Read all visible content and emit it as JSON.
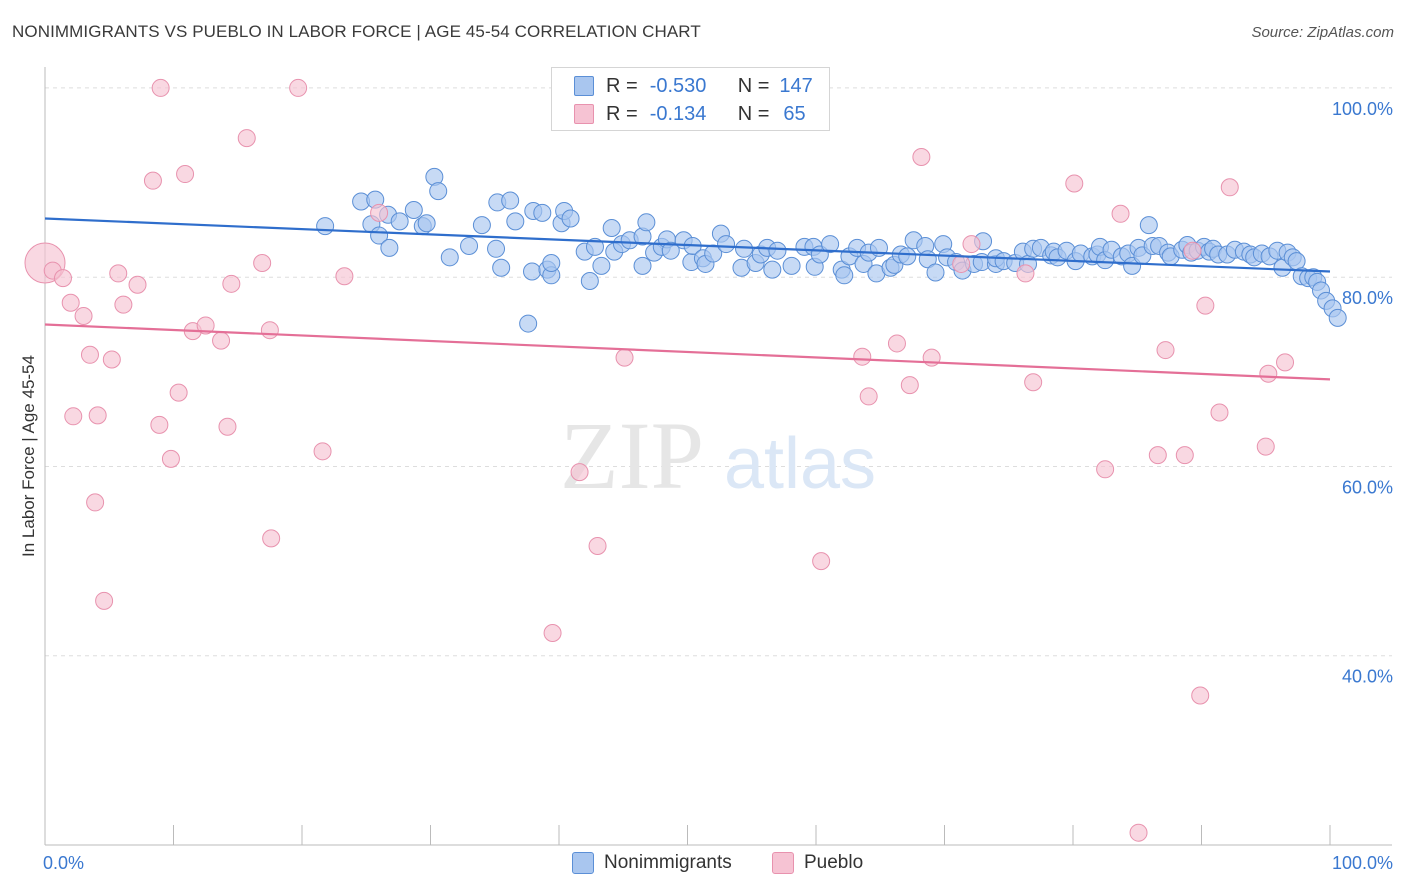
{
  "title": "NONIMMIGRANTS VS PUEBLO IN LABOR FORCE | AGE 45-54 CORRELATION CHART",
  "source": "Source: ZipAtlas.com",
  "watermark": {
    "zip": "ZIP",
    "atlas": "atlas"
  },
  "legend_top": {
    "rows": [
      {
        "r_label": "R =",
        "r_value": "-0.530",
        "n_label": "N =",
        "n_value": "147",
        "color": "#a9c6ef"
      },
      {
        "r_label": "R =",
        "r_value": "-0.134",
        "n_label": "N =",
        "n_value": "65",
        "color": "#f6b7ca"
      }
    ]
  },
  "colors": {
    "blue_fill": "#a9c6ef",
    "blue_stroke": "#5b8fd6",
    "blue_line": "#2f6ecc",
    "pink_fill": "#f6c3d3",
    "pink_stroke": "#e892ae",
    "pink_line": "#e46f97",
    "tick_label": "#3a78d0",
    "grid": "#dddddd"
  },
  "chart_data": {
    "type": "scatter",
    "title": "NONIMMIGRANTS VS PUEBLO IN LABOR FORCE | AGE 45-54 CORRELATION CHART",
    "xlabel": "",
    "ylabel": "In Labor Force | Age 45-54",
    "xlim": [
      0,
      100
    ],
    "ylim": [
      20,
      102
    ],
    "x_tick_labels": [
      "0.0%",
      "100.0%"
    ],
    "y_ticks": [
      40,
      60,
      80,
      100
    ],
    "y_tick_labels": [
      "40.0%",
      "60.0%",
      "80.0%",
      "100.0%"
    ],
    "grid": true,
    "legend_position": "bottom",
    "series": [
      {
        "name": "Nonimmigrants",
        "trend": {
          "x": [
            0,
            100
          ],
          "y": [
            86.2,
            80.6
          ]
        },
        "points": [
          [
            21.8,
            85.4
          ],
          [
            24.6,
            88.0
          ],
          [
            25.4,
            85.6
          ],
          [
            25.7,
            88.2
          ],
          [
            26.0,
            84.4
          ],
          [
            26.7,
            86.6
          ],
          [
            26.8,
            83.1
          ],
          [
            27.6,
            85.9
          ],
          [
            28.7,
            87.1
          ],
          [
            29.4,
            85.4
          ],
          [
            29.7,
            85.7
          ],
          [
            30.3,
            90.6
          ],
          [
            30.6,
            89.1
          ],
          [
            31.5,
            82.1
          ],
          [
            33.0,
            83.3
          ],
          [
            34.0,
            85.5
          ],
          [
            35.1,
            83.0
          ],
          [
            35.2,
            87.9
          ],
          [
            35.5,
            81.0
          ],
          [
            36.2,
            88.1
          ],
          [
            36.6,
            85.9
          ],
          [
            37.9,
            80.6
          ],
          [
            38.0,
            87.0
          ],
          [
            38.7,
            86.8
          ],
          [
            39.1,
            80.8
          ],
          [
            39.4,
            80.2
          ],
          [
            39.4,
            81.5
          ],
          [
            40.2,
            85.7
          ],
          [
            40.4,
            87.0
          ],
          [
            40.9,
            86.2
          ],
          [
            42.0,
            82.7
          ],
          [
            42.4,
            79.6
          ],
          [
            42.8,
            83.2
          ],
          [
            43.3,
            81.2
          ],
          [
            44.1,
            85.2
          ],
          [
            44.3,
            82.7
          ],
          [
            44.9,
            83.5
          ],
          [
            45.5,
            83.9
          ],
          [
            46.5,
            84.3
          ],
          [
            46.5,
            81.2
          ],
          [
            46.8,
            85.8
          ],
          [
            47.4,
            82.6
          ],
          [
            48.0,
            83.2
          ],
          [
            48.4,
            84.0
          ],
          [
            48.7,
            82.8
          ],
          [
            49.7,
            83.9
          ],
          [
            50.3,
            81.6
          ],
          [
            50.4,
            83.3
          ],
          [
            51.2,
            82.0
          ],
          [
            51.4,
            81.4
          ],
          [
            52.0,
            82.5
          ],
          [
            52.6,
            84.6
          ],
          [
            53.0,
            83.5
          ],
          [
            54.2,
            81.0
          ],
          [
            54.4,
            83.0
          ],
          [
            55.3,
            81.5
          ],
          [
            55.7,
            82.4
          ],
          [
            56.2,
            83.1
          ],
          [
            56.6,
            80.8
          ],
          [
            57.0,
            82.8
          ],
          [
            58.1,
            81.2
          ],
          [
            59.1,
            83.2
          ],
          [
            59.8,
            83.2
          ],
          [
            59.9,
            81.1
          ],
          [
            60.3,
            82.4
          ],
          [
            61.1,
            83.5
          ],
          [
            62.0,
            80.8
          ],
          [
            62.2,
            80.2
          ],
          [
            62.6,
            82.2
          ],
          [
            63.2,
            83.1
          ],
          [
            63.7,
            81.4
          ],
          [
            64.1,
            82.6
          ],
          [
            64.7,
            80.4
          ],
          [
            64.9,
            83.1
          ],
          [
            65.8,
            81.0
          ],
          [
            66.1,
            81.3
          ],
          [
            66.6,
            82.4
          ],
          [
            67.1,
            82.2
          ],
          [
            67.6,
            83.9
          ],
          [
            68.5,
            83.3
          ],
          [
            68.7,
            81.9
          ],
          [
            69.3,
            80.5
          ],
          [
            69.9,
            83.5
          ],
          [
            70.2,
            82.1
          ],
          [
            70.9,
            81.6
          ],
          [
            71.4,
            80.7
          ],
          [
            72.3,
            81.4
          ],
          [
            72.9,
            81.6
          ],
          [
            73.0,
            83.8
          ],
          [
            74.0,
            81.4
          ],
          [
            74.0,
            82.0
          ],
          [
            74.6,
            81.7
          ],
          [
            75.5,
            81.5
          ],
          [
            76.1,
            82.7
          ],
          [
            76.5,
            81.4
          ],
          [
            76.9,
            83.0
          ],
          [
            77.5,
            83.1
          ],
          [
            78.3,
            82.3
          ],
          [
            78.5,
            82.7
          ],
          [
            78.8,
            82.1
          ],
          [
            79.5,
            82.8
          ],
          [
            80.2,
            81.7
          ],
          [
            80.6,
            82.5
          ],
          [
            81.5,
            82.2
          ],
          [
            81.9,
            82.4
          ],
          [
            82.1,
            83.2
          ],
          [
            82.5,
            81.8
          ],
          [
            83.0,
            82.9
          ],
          [
            83.8,
            82.2
          ],
          [
            84.3,
            82.5
          ],
          [
            84.6,
            81.2
          ],
          [
            85.1,
            83.1
          ],
          [
            85.4,
            82.3
          ],
          [
            85.9,
            85.5
          ],
          [
            86.2,
            83.3
          ],
          [
            86.7,
            83.3
          ],
          [
            87.4,
            82.6
          ],
          [
            87.6,
            82.2
          ],
          [
            88.5,
            82.9
          ],
          [
            88.9,
            83.4
          ],
          [
            89.2,
            82.6
          ],
          [
            89.7,
            82.8
          ],
          [
            90.2,
            83.2
          ],
          [
            90.6,
            82.7
          ],
          [
            90.9,
            83.0
          ],
          [
            91.3,
            82.4
          ],
          [
            92.0,
            82.4
          ],
          [
            92.6,
            82.9
          ],
          [
            93.3,
            82.7
          ],
          [
            93.8,
            82.4
          ],
          [
            94.1,
            82.1
          ],
          [
            94.7,
            82.5
          ],
          [
            95.3,
            82.2
          ],
          [
            95.9,
            82.8
          ],
          [
            96.3,
            81.0
          ],
          [
            96.7,
            82.6
          ],
          [
            97.1,
            82.1
          ],
          [
            97.4,
            81.7
          ],
          [
            97.8,
            80.1
          ],
          [
            98.3,
            79.9
          ],
          [
            98.7,
            80.0
          ],
          [
            99.0,
            79.5
          ],
          [
            99.3,
            78.6
          ],
          [
            99.7,
            77.5
          ],
          [
            100.2,
            76.7
          ],
          [
            100.6,
            75.7
          ],
          [
            37.6,
            75.1
          ]
        ]
      },
      {
        "name": "Pueblo",
        "trend": {
          "x": [
            0,
            100
          ],
          "y": [
            75.0,
            69.2
          ]
        },
        "points": [
          [
            0.0,
            81.5
          ],
          [
            0.6,
            80.7
          ],
          [
            1.4,
            79.9
          ],
          [
            2.0,
            77.3
          ],
          [
            2.2,
            65.3
          ],
          [
            3.0,
            75.9
          ],
          [
            3.5,
            71.8
          ],
          [
            3.9,
            56.2
          ],
          [
            4.1,
            65.4
          ],
          [
            4.6,
            45.8
          ],
          [
            5.2,
            71.3
          ],
          [
            5.7,
            80.4
          ],
          [
            6.1,
            77.1
          ],
          [
            7.2,
            79.2
          ],
          [
            8.4,
            90.2
          ],
          [
            8.9,
            64.4
          ],
          [
            9.0,
            100.0
          ],
          [
            9.8,
            60.8
          ],
          [
            10.4,
            67.8
          ],
          [
            10.9,
            90.9
          ],
          [
            11.5,
            74.3
          ],
          [
            12.5,
            74.9
          ],
          [
            13.7,
            73.3
          ],
          [
            14.2,
            64.2
          ],
          [
            14.5,
            79.3
          ],
          [
            15.7,
            94.7
          ],
          [
            16.9,
            81.5
          ],
          [
            17.5,
            74.4
          ],
          [
            17.6,
            52.4
          ],
          [
            19.7,
            100.0
          ],
          [
            21.6,
            61.6
          ],
          [
            23.3,
            80.1
          ],
          [
            26.0,
            86.8
          ],
          [
            39.5,
            42.4
          ],
          [
            41.6,
            59.4
          ],
          [
            43.0,
            51.6
          ],
          [
            45.1,
            71.5
          ],
          [
            47.2,
            100.0
          ],
          [
            59.2,
            100.0
          ],
          [
            60.4,
            50.0
          ],
          [
            63.6,
            71.6
          ],
          [
            64.1,
            67.4
          ],
          [
            66.3,
            73.0
          ],
          [
            67.3,
            68.6
          ],
          [
            68.2,
            92.7
          ],
          [
            69.0,
            71.5
          ],
          [
            71.3,
            81.4
          ],
          [
            72.1,
            83.5
          ],
          [
            76.3,
            80.4
          ],
          [
            76.9,
            68.9
          ],
          [
            80.1,
            89.9
          ],
          [
            82.5,
            59.7
          ],
          [
            83.7,
            86.7
          ],
          [
            85.1,
            21.3
          ],
          [
            86.6,
            61.2
          ],
          [
            87.2,
            72.3
          ],
          [
            88.7,
            61.2
          ],
          [
            89.3,
            82.8
          ],
          [
            89.9,
            35.8
          ],
          [
            90.3,
            77.0
          ],
          [
            91.4,
            65.7
          ],
          [
            92.2,
            89.5
          ],
          [
            95.0,
            62.1
          ],
          [
            95.2,
            69.8
          ],
          [
            96.5,
            71.0
          ]
        ]
      }
    ]
  }
}
